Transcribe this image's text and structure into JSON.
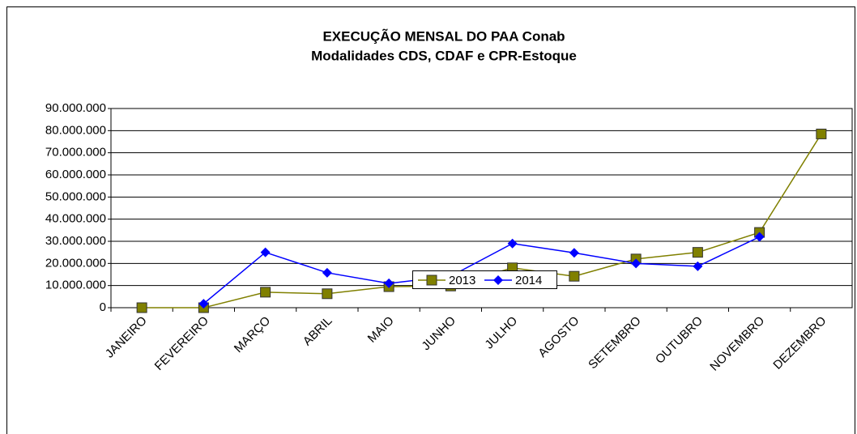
{
  "chart_data": {
    "type": "line",
    "title": "EXECUÇÃO MENSAL DO PAA Conab",
    "subtitle": "Modalidades CDS, CDAF e CPR-Estoque",
    "categories": [
      "JANEIRO",
      "FEVEREIRO",
      "MARÇO",
      "ABRIL",
      "MAIO",
      "JUNHO",
      "JULHO",
      "AGOSTO",
      "SETEMBRO",
      "OUTUBRO",
      "NOVEMBRO",
      "DEZEMBRO"
    ],
    "series": [
      {
        "name": "2013",
        "color": "#808000",
        "marker": "square",
        "values": [
          0,
          0,
          7000000,
          6300000,
          9500000,
          9800000,
          18000000,
          14200000,
          22000000,
          25000000,
          34000000,
          78500000
        ]
      },
      {
        "name": "2014",
        "color": "#0000ff",
        "marker": "diamond",
        "values": [
          null,
          1800000,
          25000000,
          15800000,
          11000000,
          14200000,
          29000000,
          24800000,
          20000000,
          18700000,
          32000000,
          null
        ]
      }
    ],
    "ylim": [
      0,
      90000000
    ],
    "yticks": [
      0,
      {
        "value": 10000000,
        "label": "10.000.000"
      },
      {
        "value": 20000000,
        "label": "20.000.000"
      },
      {
        "value": 30000000,
        "label": "30.000.000"
      },
      {
        "value": 40000000,
        "label": "40.000.000"
      },
      {
        "value": 50000000,
        "label": "50.000.000"
      },
      {
        "value": 60000000,
        "label": "60.000.000"
      },
      {
        "value": 70000000,
        "label": "70.000.000"
      },
      {
        "value": 80000000,
        "label": "80.000.000"
      },
      {
        "value": 90000000,
        "label": "90.000.000"
      }
    ],
    "grid": true,
    "legend": "bottom"
  }
}
